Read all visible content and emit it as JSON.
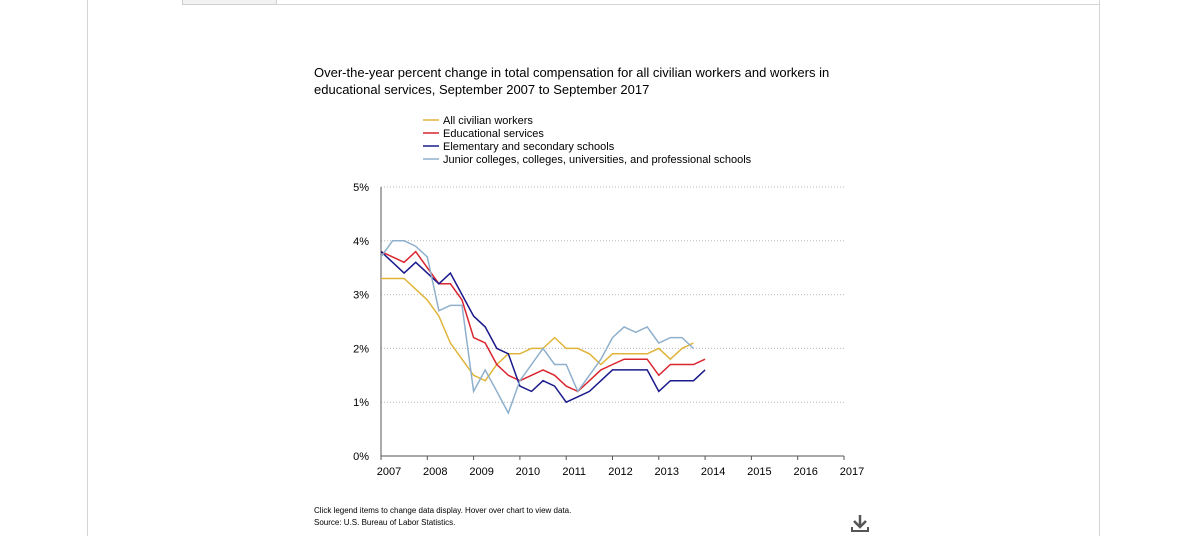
{
  "chart_data": {
    "type": "line",
    "title": "Over-the-year percent change in total compensation for all civilian workers and workers in educational services, September 2007 to September 2017",
    "xlabel": "",
    "ylabel": "",
    "xlim": [
      2007,
      2017
    ],
    "ylim": [
      0,
      5
    ],
    "x_ticks": [
      "2007",
      "2008",
      "2009",
      "2010",
      "2011",
      "2012",
      "2013",
      "2014",
      "2015",
      "2016",
      "2017"
    ],
    "y_ticks": [
      "0%",
      "1%",
      "2%",
      "3%",
      "4%",
      "5%"
    ],
    "grid": "horizontal dotted",
    "legend_position": "top",
    "x": [
      2007.0,
      2007.25,
      2007.5,
      2007.75,
      2008.0,
      2008.25,
      2008.5,
      2008.75,
      2009.0,
      2009.25,
      2009.5,
      2009.75,
      2010.0,
      2010.25,
      2010.5,
      2010.75,
      2011.0,
      2011.25,
      2011.5,
      2011.75,
      2012.0,
      2012.25,
      2012.5,
      2012.75,
      2013.0,
      2013.25,
      2013.5,
      2013.75,
      2014.0
    ],
    "series": [
      {
        "name": "All civilian workers",
        "color": "#e0b43a",
        "values": [
          3.3,
          3.3,
          3.3,
          3.1,
          2.9,
          2.6,
          2.1,
          1.8,
          1.5,
          1.4,
          1.7,
          1.9,
          1.9,
          2.0,
          2.0,
          2.2,
          2.0,
          2.0,
          1.9,
          1.7,
          1.9,
          1.9,
          1.9,
          1.9,
          2.0,
          1.8,
          2.0,
          2.1,
          null
        ]
      },
      {
        "name": "Educational services",
        "color": "#d9262f",
        "values": [
          3.8,
          3.7,
          3.6,
          3.8,
          3.5,
          3.2,
          3.2,
          2.9,
          2.2,
          2.1,
          1.7,
          1.5,
          1.4,
          1.5,
          1.6,
          1.5,
          1.3,
          1.2,
          1.4,
          1.6,
          1.7,
          1.8,
          1.8,
          1.8,
          1.5,
          1.7,
          1.7,
          1.7,
          1.8
        ]
      },
      {
        "name": "Elementary and secondary schools",
        "color": "#1a1a8c",
        "values": [
          3.8,
          3.6,
          3.4,
          3.6,
          3.4,
          3.2,
          3.4,
          3.0,
          2.6,
          2.4,
          2.0,
          1.9,
          1.3,
          1.2,
          1.4,
          1.3,
          1.0,
          1.1,
          1.2,
          1.4,
          1.6,
          1.6,
          1.6,
          1.6,
          1.2,
          1.4,
          1.4,
          1.4,
          1.6
        ]
      },
      {
        "name": "Junior colleges, colleges, universities, and professional schools",
        "color": "#8fb0cc",
        "values": [
          3.7,
          4.0,
          4.0,
          3.9,
          3.7,
          2.7,
          2.8,
          2.8,
          1.2,
          1.6,
          1.2,
          0.8,
          1.4,
          1.7,
          2.0,
          1.7,
          1.7,
          1.2,
          1.5,
          1.8,
          2.2,
          2.4,
          2.3,
          2.4,
          2.1,
          2.2,
          2.2,
          2.0,
          null
        ]
      }
    ]
  },
  "footer": {
    "note": "Click legend items to change data display. Hover over chart to view data.",
    "source": "Source: U.S. Bureau of Labor Statistics."
  },
  "download_icon": "download-icon"
}
